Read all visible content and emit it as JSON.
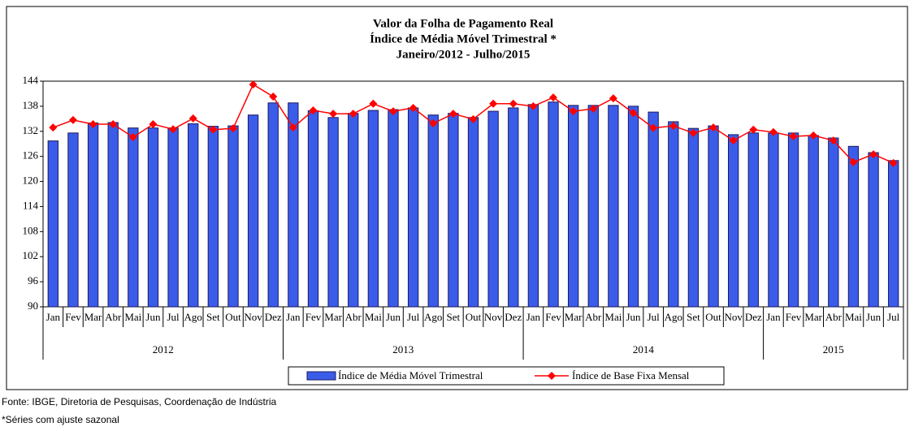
{
  "chart_data": {
    "type": "bar-line",
    "title": [
      "Valor da Folha de Pagamento Real",
      "Índice de Média Móvel Trimestral *",
      "Janeiro/2012 - Julho/2015"
    ],
    "categories": [
      "Jan",
      "Fev",
      "Mar",
      "Abr",
      "Mai",
      "Jun",
      "Jul",
      "Ago",
      "Set",
      "Out",
      "Nov",
      "Dez",
      "Jan",
      "Fev",
      "Mar",
      "Abr",
      "Mai",
      "Jun",
      "Jul",
      "Ago",
      "Set",
      "Out",
      "Nov",
      "Dez",
      "Jan",
      "Fev",
      "Mar",
      "Abr",
      "Mai",
      "Jun",
      "Jul",
      "Ago",
      "Set",
      "Out",
      "Nov",
      "Dez",
      "Jan",
      "Fev",
      "Mar",
      "Abr",
      "Mai",
      "Jun",
      "Jul"
    ],
    "years": [
      "2012",
      "2013",
      "2014",
      "2015"
    ],
    "series": [
      {
        "name": "Índice de Média Móvel Trimestral",
        "type": "bar",
        "color": "#3b5ce8",
        "values": [
          129.7,
          131.6,
          134,
          134.1,
          132.8,
          132.8,
          132.8,
          133.8,
          133.2,
          133.3,
          135.9,
          138.8,
          138.8,
          136.9,
          135.3,
          136.3,
          137,
          137.2,
          137.6,
          135.9,
          136.3,
          135.3,
          136.8,
          137.6,
          138.4,
          139,
          138.2,
          138.2,
          138.2,
          138,
          136.6,
          134.3,
          132.7,
          133.3,
          131.2,
          131.6,
          131.6,
          131.6,
          131,
          130.4,
          128.4,
          126.9,
          125
        ]
      },
      {
        "name": "Índice de Base Fixa Mensal",
        "type": "line",
        "color": "#ff0000",
        "values": [
          132.9,
          134.7,
          133.7,
          133.7,
          130.6,
          133.7,
          132.5,
          135.1,
          132.4,
          132.7,
          143.2,
          140.3,
          132.9,
          137,
          136.2,
          136.2,
          138.6,
          136.8,
          137.6,
          133.9,
          136.2,
          134.9,
          138.6,
          138.6,
          138,
          140.1,
          136.8,
          137.4,
          139.9,
          136.4,
          132.8,
          133.3,
          131.6,
          132.9,
          129.8,
          132.4,
          131.8,
          130.8,
          131,
          129.8,
          124.6,
          126.5,
          124.4
        ]
      }
    ],
    "ylim": [
      90,
      144
    ],
    "yticks": [
      90,
      96,
      102,
      108,
      114,
      120,
      126,
      132,
      138,
      144
    ],
    "grid": false,
    "source": "Fonte: IBGE, Diretoria de Pesquisas, Coordenação de Indústria",
    "note": "*Séries com ajuste sazonal"
  }
}
